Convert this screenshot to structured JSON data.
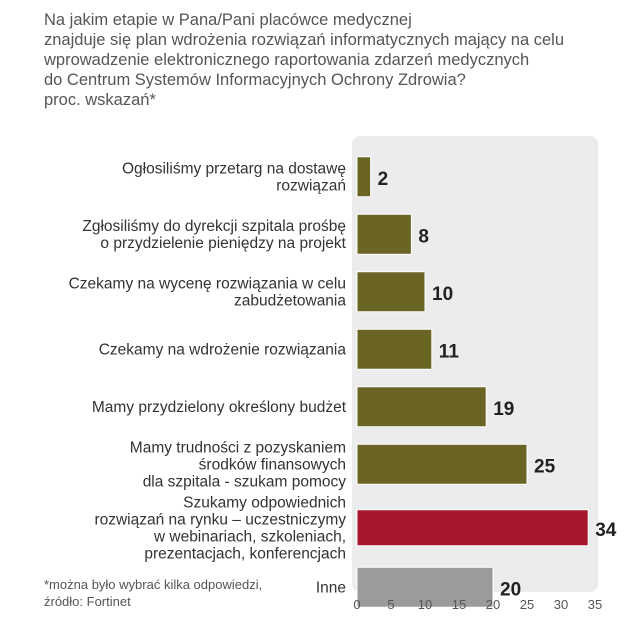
{
  "title_lines": [
    "Na jakim etapie w Pana/Pani placówce medycznej",
    "znajduje się plan wdrożenia rozwiązań informatycznych mający na celu",
    "wprowadzenie elektronicznego raportowania zdarzeń medycznych",
    "do Centrum Systemów Informacyjnych Ochrony Zdrowia?",
    "proc. wskazań*"
  ],
  "footnote_lines": [
    "*można było wybrać kilka odpowiedzi,",
    "źródło: Fortinet"
  ],
  "colors": {
    "default_bar": "#6b6524",
    "highlight_bar": "#a8162e",
    "other_bar": "#9b9b9b",
    "panel": "#ececec",
    "text": "#333333",
    "value_text": "#222222"
  },
  "chart_data": {
    "type": "bar",
    "orientation": "horizontal",
    "unit": "percent",
    "xlim": [
      0,
      35
    ],
    "xticks": [
      0,
      5,
      10,
      15,
      20,
      25,
      30,
      35
    ],
    "categories": [
      [
        "Ogłosiliśmy przetarg na dostawę",
        "rozwiązań"
      ],
      [
        "Zgłosiliśmy do dyrekcji szpitala prośbę",
        "o przydzielenie pieniędzy na projekt"
      ],
      [
        "Czekamy na wycenę rozwiązania w celu",
        "zabudżetowania"
      ],
      [
        "Czekamy na wdrożenie rozwiązania"
      ],
      [
        "Mamy przydzielony określony budżet"
      ],
      [
        "Mamy trudności z pozyskaniem",
        "środków finansowych",
        "dla szpitala - szukam pomocy"
      ],
      [
        "Szukamy odpowiednich",
        "rozwiązań na rynku – uczestniczymy",
        "w webinariach, szkoleniach,",
        "prezentacjach, konferencjach"
      ],
      [
        "Inne"
      ]
    ],
    "values": [
      2,
      8,
      10,
      11,
      19,
      25,
      34,
      20
    ],
    "bar_styles": [
      "default",
      "default",
      "default",
      "default",
      "default",
      "default",
      "highlight",
      "other"
    ]
  }
}
